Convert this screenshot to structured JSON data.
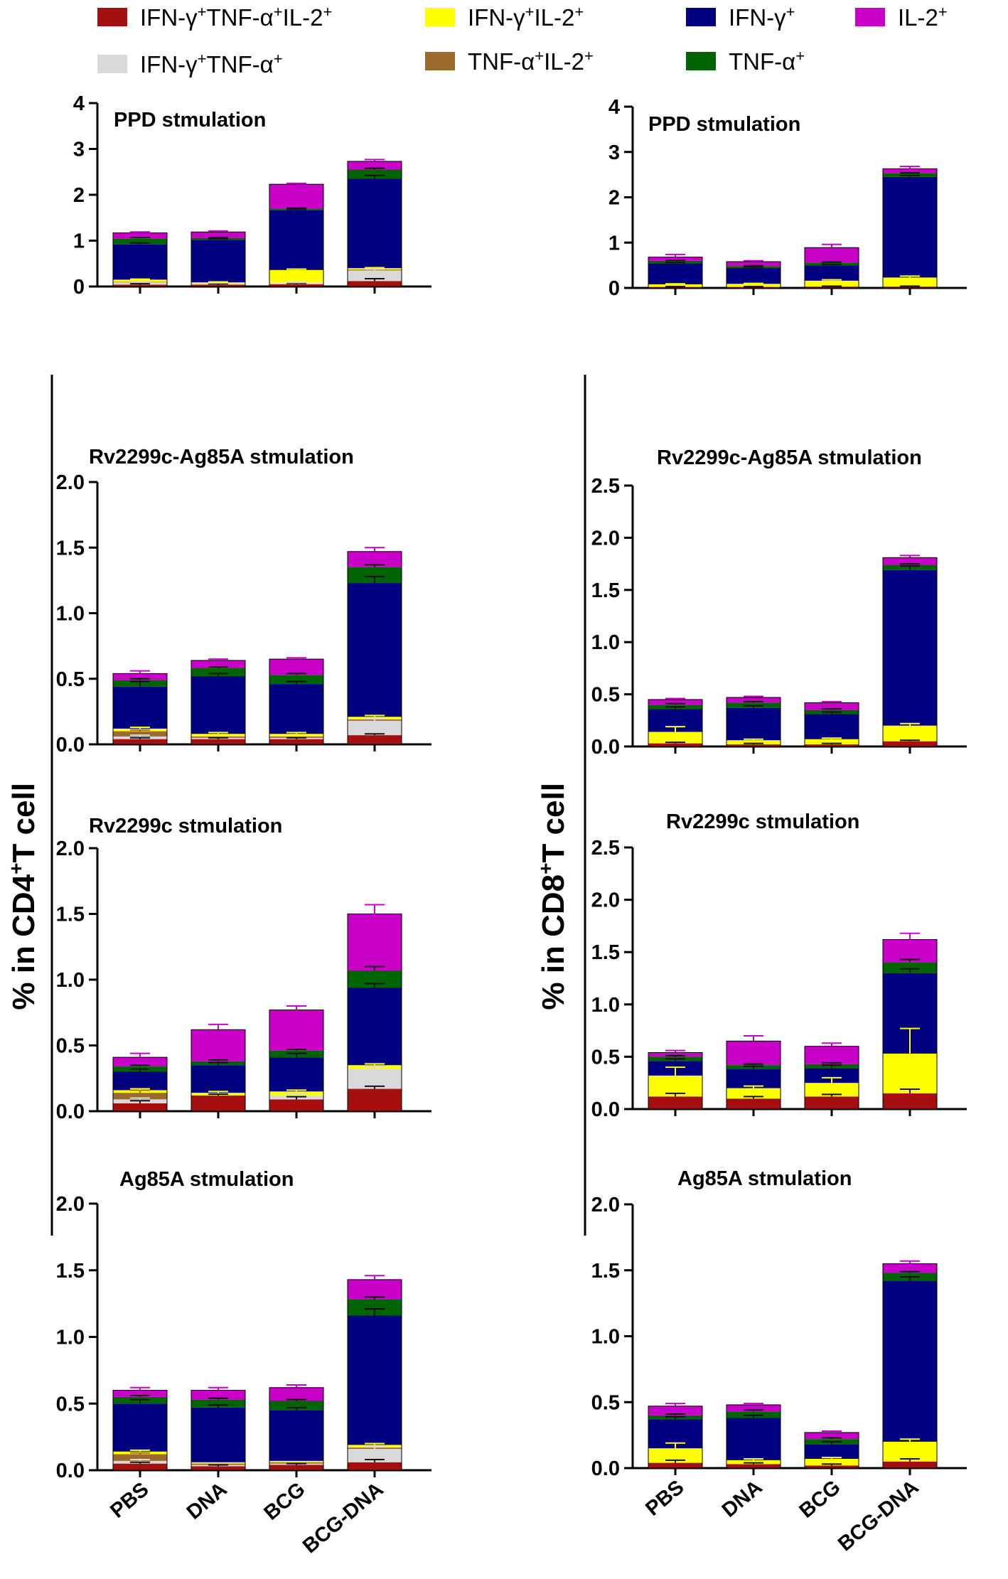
{
  "colors": {
    "triple": "#a50f0f",
    "ifn_il2": "#ffff00",
    "ifn_only": "#000080",
    "il2_only": "#c800c8",
    "ifn_tnf": "#d9d9d9",
    "tnf_il2": "#9c6a2a",
    "tnf_only": "#006400"
  },
  "legend": [
    {
      "key": "triple",
      "parts": [
        [
          "IFN-γ",
          "+"
        ],
        [
          "TNF-α",
          "+"
        ],
        [
          "IL-2",
          "+"
        ]
      ]
    },
    {
      "key": "ifn_il2",
      "parts": [
        [
          "IFN-γ",
          "+"
        ],
        [
          "IL-2",
          "+"
        ]
      ]
    },
    {
      "key": "ifn_only",
      "parts": [
        [
          "IFN-γ",
          "+"
        ]
      ]
    },
    {
      "key": "il2_only",
      "parts": [
        [
          "IL-2",
          "+"
        ]
      ]
    },
    {
      "key": "ifn_tnf",
      "parts": [
        [
          "IFN-γ",
          "+"
        ],
        [
          "TNF-α",
          "+"
        ]
      ]
    },
    {
      "key": "tnf_il2",
      "parts": [
        [
          "TNF-α",
          "+"
        ],
        [
          "IL-2",
          "+"
        ]
      ]
    },
    {
      "key": "tnf_only",
      "parts": [
        [
          "TNF-α",
          "+"
        ]
      ]
    }
  ],
  "y_axis_labels": {
    "left": {
      "pre": "% in CD4",
      "sup": "+",
      "post": "T cell"
    },
    "right": {
      "pre": "% in CD8",
      "sup": "+",
      "post": "T cell"
    }
  },
  "chart_data": [
    {
      "id": "cd4-ppd",
      "type": "bar",
      "stacked": true,
      "title": "PPD stmulation",
      "cell": "CD4",
      "ylim": [
        0,
        4
      ],
      "yticks": [
        "0",
        "1",
        "2",
        "3",
        "4"
      ],
      "categories": [
        "PBS",
        "DNA",
        "BCG",
        "BCG-DNA"
      ],
      "series": [
        {
          "key": "triple",
          "values": [
            0.04,
            0.04,
            0.05,
            0.12
          ],
          "err": [
            0.02,
            0.02,
            0.02,
            0.05
          ]
        },
        {
          "key": "ifn_tnf",
          "values": [
            0.05,
            0.03,
            0.03,
            0.23
          ],
          "err": [
            0.02,
            0.01,
            0.01,
            0.03
          ]
        },
        {
          "key": "tnf_il2",
          "values": [
            0.01,
            0.0,
            0.0,
            0.02
          ],
          "err": [
            0,
            0,
            0,
            0
          ]
        },
        {
          "key": "ifn_il2",
          "values": [
            0.05,
            0.02,
            0.28,
            0.03
          ],
          "err": [
            0.01,
            0.01,
            0.02,
            0.01
          ]
        },
        {
          "key": "ifn_only",
          "values": [
            0.77,
            0.93,
            1.3,
            1.95
          ],
          "err": [
            0.03,
            0.02,
            0.02,
            0.07
          ]
        },
        {
          "key": "tnf_only",
          "values": [
            0.13,
            0.04,
            0.04,
            0.2
          ],
          "err": [
            0.02,
            0.01,
            0.01,
            0.03
          ]
        },
        {
          "key": "il2_only",
          "values": [
            0.12,
            0.13,
            0.53,
            0.18
          ],
          "err": [
            0.02,
            0.02,
            0.02,
            0.04
          ]
        }
      ]
    },
    {
      "id": "cd8-ppd",
      "type": "bar",
      "stacked": true,
      "title": "PPD stmulation",
      "cell": "CD8",
      "ylim": [
        0,
        4
      ],
      "yticks": [
        "0",
        "1",
        "2",
        "3",
        "4"
      ],
      "categories": [
        "PBS",
        "DNA",
        "BCG",
        "BCG-DNA"
      ],
      "series": [
        {
          "key": "triple",
          "values": [
            0.02,
            0.02,
            0.03,
            0.03
          ],
          "err": [
            0.01,
            0.01,
            0.01,
            0.01
          ]
        },
        {
          "key": "ifn_tnf",
          "values": [
            0.0,
            0.0,
            0.0,
            0.0
          ],
          "err": [
            0,
            0,
            0,
            0
          ]
        },
        {
          "key": "tnf_il2",
          "values": [
            0.0,
            0.0,
            0.0,
            0.0
          ],
          "err": [
            0,
            0,
            0,
            0
          ]
        },
        {
          "key": "ifn_il2",
          "values": [
            0.06,
            0.07,
            0.13,
            0.2
          ],
          "err": [
            0.01,
            0.01,
            0.02,
            0.03
          ]
        },
        {
          "key": "ifn_only",
          "values": [
            0.46,
            0.35,
            0.34,
            2.22
          ],
          "err": [
            0.02,
            0.02,
            0.02,
            0.03
          ]
        },
        {
          "key": "tnf_only",
          "values": [
            0.06,
            0.04,
            0.06,
            0.08
          ],
          "err": [
            0.01,
            0.01,
            0.01,
            0.01
          ]
        },
        {
          "key": "il2_only",
          "values": [
            0.08,
            0.1,
            0.33,
            0.1
          ],
          "err": [
            0.06,
            0.02,
            0.07,
            0.05
          ]
        }
      ]
    },
    {
      "id": "cd4-rv2299c-ag85a",
      "type": "bar",
      "stacked": true,
      "title": "Rv2299c-Ag85A stmulation",
      "cell": "CD4",
      "ylim": [
        0,
        2
      ],
      "yticks": [
        "0.0",
        "0.5",
        "1.0",
        "1.5",
        "2.0"
      ],
      "categories": [
        "PBS",
        "DNA",
        "BCG",
        "BCG-DNA"
      ],
      "series": [
        {
          "key": "triple",
          "values": [
            0.04,
            0.04,
            0.04,
            0.07
          ],
          "err": [
            0.01,
            0.01,
            0.01,
            0.01
          ]
        },
        {
          "key": "ifn_tnf",
          "values": [
            0.02,
            0.01,
            0.01,
            0.11
          ],
          "err": [
            0.01,
            0,
            0,
            0.02
          ]
        },
        {
          "key": "tnf_il2",
          "values": [
            0.04,
            0.01,
            0.01,
            0.01
          ],
          "err": [
            0.01,
            0,
            0,
            0
          ]
        },
        {
          "key": "ifn_il2",
          "values": [
            0.02,
            0.02,
            0.02,
            0.02
          ],
          "err": [
            0.01,
            0.01,
            0.01,
            0.01
          ]
        },
        {
          "key": "ifn_only",
          "values": [
            0.32,
            0.44,
            0.38,
            1.02
          ],
          "err": [
            0.04,
            0.02,
            0.02,
            0.05
          ]
        },
        {
          "key": "tnf_only",
          "values": [
            0.05,
            0.06,
            0.07,
            0.12
          ],
          "err": [
            0.01,
            0.01,
            0.01,
            0.02
          ]
        },
        {
          "key": "il2_only",
          "values": [
            0.05,
            0.06,
            0.12,
            0.12
          ],
          "err": [
            0.02,
            0.01,
            0.01,
            0.03
          ]
        }
      ]
    },
    {
      "id": "cd8-rv2299c-ag85a",
      "type": "bar",
      "stacked": true,
      "title": "Rv2299c-Ag85A stmulation",
      "cell": "CD8",
      "ylim": [
        0,
        2.5
      ],
      "yticks": [
        "0.0",
        "0.5",
        "1.0",
        "1.5",
        "2.0",
        "2.5"
      ],
      "categories": [
        "PBS",
        "DNA",
        "BCG",
        "BCG-DNA"
      ],
      "series": [
        {
          "key": "triple",
          "values": [
            0.03,
            0.02,
            0.02,
            0.05
          ],
          "err": [
            0.01,
            0.01,
            0.01,
            0.01
          ]
        },
        {
          "key": "ifn_tnf",
          "values": [
            0.0,
            0.0,
            0.0,
            0.0
          ],
          "err": [
            0,
            0,
            0,
            0
          ]
        },
        {
          "key": "tnf_il2",
          "values": [
            0.0,
            0.0,
            0.0,
            0.0
          ],
          "err": [
            0,
            0,
            0,
            0
          ]
        },
        {
          "key": "ifn_il2",
          "values": [
            0.11,
            0.04,
            0.05,
            0.15
          ],
          "err": [
            0.05,
            0.01,
            0.01,
            0.02
          ]
        },
        {
          "key": "ifn_only",
          "values": [
            0.22,
            0.31,
            0.24,
            1.49
          ],
          "err": [
            0.02,
            0.02,
            0.02,
            0.04
          ]
        },
        {
          "key": "tnf_only",
          "values": [
            0.04,
            0.05,
            0.04,
            0.05
          ],
          "err": [
            0.01,
            0.01,
            0.01,
            0.01
          ]
        },
        {
          "key": "il2_only",
          "values": [
            0.05,
            0.05,
            0.07,
            0.07
          ],
          "err": [
            0.01,
            0.01,
            0.01,
            0.02
          ]
        }
      ]
    },
    {
      "id": "cd4-rv2299c",
      "type": "bar",
      "stacked": true,
      "title": "Rv2299c stmulation",
      "cell": "CD4",
      "ylim": [
        0,
        2
      ],
      "yticks": [
        "0.0",
        "0.5",
        "1.0",
        "1.5",
        "2.0"
      ],
      "categories": [
        "PBS",
        "DNA",
        "BCG",
        "BCG-DNA"
      ],
      "series": [
        {
          "key": "triple",
          "values": [
            0.06,
            0.12,
            0.09,
            0.17
          ],
          "err": [
            0.02,
            0.01,
            0.02,
            0.02
          ]
        },
        {
          "key": "ifn_tnf",
          "values": [
            0.03,
            0.0,
            0.03,
            0.15
          ],
          "err": [
            0.01,
            0,
            0.01,
            0.02
          ]
        },
        {
          "key": "tnf_il2",
          "values": [
            0.05,
            0.0,
            0.0,
            0.0
          ],
          "err": [
            0.02,
            0,
            0,
            0
          ]
        },
        {
          "key": "ifn_il2",
          "values": [
            0.02,
            0.02,
            0.03,
            0.03
          ],
          "err": [
            0.01,
            0.01,
            0.01,
            0.01
          ]
        },
        {
          "key": "ifn_only",
          "values": [
            0.14,
            0.21,
            0.26,
            0.59
          ],
          "err": [
            0.02,
            0.02,
            0.03,
            0.03
          ]
        },
        {
          "key": "tnf_only",
          "values": [
            0.04,
            0.03,
            0.05,
            0.13
          ],
          "err": [
            0.01,
            0.01,
            0.01,
            0.03
          ]
        },
        {
          "key": "il2_only",
          "values": [
            0.07,
            0.24,
            0.31,
            0.43
          ],
          "err": [
            0.03,
            0.04,
            0.03,
            0.07
          ]
        }
      ]
    },
    {
      "id": "cd8-rv2299c",
      "type": "bar",
      "stacked": true,
      "title": "Rv2299c stmulation",
      "cell": "CD8",
      "ylim": [
        0,
        2.5
      ],
      "yticks": [
        "0.0",
        "0.5",
        "1.0",
        "1.5",
        "2.0",
        "2.5"
      ],
      "categories": [
        "PBS",
        "DNA",
        "BCG",
        "BCG-DNA"
      ],
      "series": [
        {
          "key": "triple",
          "values": [
            0.12,
            0.1,
            0.12,
            0.15
          ],
          "err": [
            0.03,
            0.02,
            0.02,
            0.04
          ]
        },
        {
          "key": "ifn_tnf",
          "values": [
            0.0,
            0.0,
            0.0,
            0.0
          ],
          "err": [
            0,
            0,
            0,
            0
          ]
        },
        {
          "key": "tnf_il2",
          "values": [
            0.0,
            0.0,
            0.0,
            0.0
          ],
          "err": [
            0,
            0,
            0,
            0
          ]
        },
        {
          "key": "ifn_il2",
          "values": [
            0.2,
            0.1,
            0.13,
            0.38
          ],
          "err": [
            0.08,
            0.02,
            0.05,
            0.24
          ]
        },
        {
          "key": "ifn_only",
          "values": [
            0.14,
            0.18,
            0.14,
            0.77
          ],
          "err": [
            0.02,
            0.03,
            0.03,
            0.04
          ]
        },
        {
          "key": "tnf_only",
          "values": [
            0.04,
            0.04,
            0.04,
            0.1
          ],
          "err": [
            0.01,
            0.01,
            0.01,
            0.03
          ]
        },
        {
          "key": "il2_only",
          "values": [
            0.04,
            0.23,
            0.17,
            0.22
          ],
          "err": [
            0.02,
            0.05,
            0.03,
            0.06
          ]
        }
      ]
    },
    {
      "id": "cd4-ag85a",
      "type": "bar",
      "stacked": true,
      "title": "Ag85A stmulation",
      "cell": "CD4",
      "ylim": [
        0,
        2
      ],
      "yticks": [
        "0.0",
        "0.5",
        "1.0",
        "1.5",
        "2.0"
      ],
      "categories": [
        "PBS",
        "DNA",
        "BCG",
        "BCG-DNA"
      ],
      "series": [
        {
          "key": "triple",
          "values": [
            0.05,
            0.03,
            0.04,
            0.06
          ],
          "err": [
            0.01,
            0.01,
            0.01,
            0.02
          ]
        },
        {
          "key": "ifn_tnf",
          "values": [
            0.02,
            0.01,
            0.01,
            0.1
          ],
          "err": [
            0.01,
            0,
            0,
            0.02
          ]
        },
        {
          "key": "tnf_il2",
          "values": [
            0.05,
            0.01,
            0.01,
            0.01
          ],
          "err": [
            0.01,
            0,
            0,
            0
          ]
        },
        {
          "key": "ifn_il2",
          "values": [
            0.02,
            0.01,
            0.01,
            0.02
          ],
          "err": [
            0.01,
            0,
            0,
            0.01
          ]
        },
        {
          "key": "ifn_only",
          "values": [
            0.36,
            0.41,
            0.38,
            0.97
          ],
          "err": [
            0.03,
            0.02,
            0.02,
            0.05
          ]
        },
        {
          "key": "tnf_only",
          "values": [
            0.05,
            0.06,
            0.07,
            0.12
          ],
          "err": [
            0.01,
            0.01,
            0.01,
            0.02
          ]
        },
        {
          "key": "il2_only",
          "values": [
            0.05,
            0.07,
            0.1,
            0.15
          ],
          "err": [
            0.02,
            0.02,
            0.02,
            0.03
          ]
        }
      ]
    },
    {
      "id": "cd8-ag85a",
      "type": "bar",
      "stacked": true,
      "title": "Ag85A stmulation",
      "cell": "CD8",
      "ylim": [
        0,
        2
      ],
      "yticks": [
        "0.0",
        "0.5",
        "1.0",
        "1.5",
        "2.0"
      ],
      "categories": [
        "PBS",
        "DNA",
        "BCG",
        "BCG-DNA"
      ],
      "series": [
        {
          "key": "triple",
          "values": [
            0.04,
            0.03,
            0.02,
            0.05
          ],
          "err": [
            0.02,
            0.01,
            0.01,
            0.02
          ]
        },
        {
          "key": "ifn_tnf",
          "values": [
            0.0,
            0.0,
            0.0,
            0.0
          ],
          "err": [
            0,
            0,
            0,
            0
          ]
        },
        {
          "key": "tnf_il2",
          "values": [
            0.0,
            0.0,
            0.0,
            0.0
          ],
          "err": [
            0,
            0,
            0,
            0
          ]
        },
        {
          "key": "ifn_il2",
          "values": [
            0.11,
            0.03,
            0.05,
            0.15
          ],
          "err": [
            0.04,
            0.01,
            0.01,
            0.02
          ]
        },
        {
          "key": "ifn_only",
          "values": [
            0.22,
            0.32,
            0.11,
            1.22
          ],
          "err": [
            0.02,
            0.02,
            0.02,
            0.03
          ]
        },
        {
          "key": "tnf_only",
          "values": [
            0.03,
            0.05,
            0.04,
            0.06
          ],
          "err": [
            0.01,
            0.01,
            0.01,
            0.01
          ]
        },
        {
          "key": "il2_only",
          "values": [
            0.07,
            0.05,
            0.05,
            0.07
          ],
          "err": [
            0.02,
            0.01,
            0.01,
            0.02
          ]
        }
      ]
    }
  ]
}
